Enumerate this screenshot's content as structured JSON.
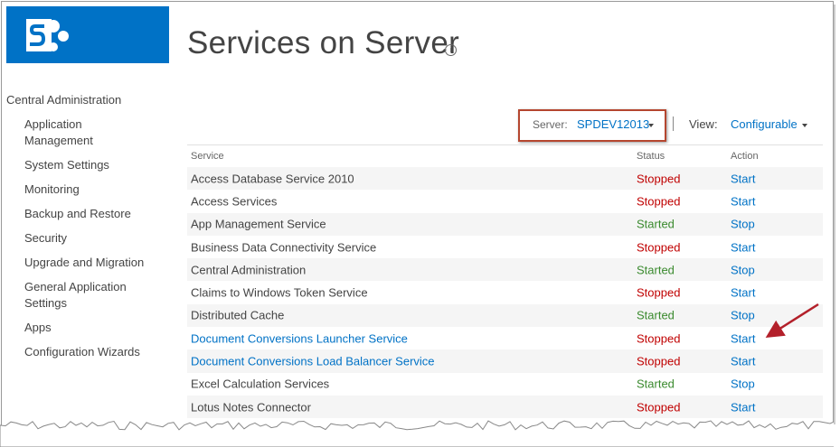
{
  "nav": {
    "heading": "Central Administration",
    "items": [
      "Application Management",
      "System Settings",
      "Monitoring",
      "Backup and Restore",
      "Security",
      "Upgrade and Migration",
      "General Application Settings",
      "Apps",
      "Configuration Wizards"
    ]
  },
  "header": {
    "title": "Services on Server"
  },
  "toolbar": {
    "server_label": "Server:",
    "server_value": "SPDEV12013",
    "view_label": "View:",
    "view_value": "Configurable"
  },
  "table": {
    "columns": [
      "Service",
      "Status",
      "Action"
    ],
    "rows": [
      {
        "service": "Access Database Service 2010",
        "status": "Stopped",
        "action": "Start",
        "status_color": "#c00000"
      },
      {
        "service": "Access Services",
        "status": "Stopped",
        "action": "Start",
        "status_color": "#c00000"
      },
      {
        "service": "App Management Service",
        "status": "Started",
        "action": "Stop",
        "status_color": "#3a8a2e"
      },
      {
        "service": "Business Data Connectivity Service",
        "status": "Stopped",
        "action": "Start",
        "status_color": "#c00000"
      },
      {
        "service": "Central Administration",
        "status": "Started",
        "action": "Stop",
        "status_color": "#3a8a2e"
      },
      {
        "service": "Claims to Windows Token Service",
        "status": "Stopped",
        "action": "Start",
        "status_color": "#c00000"
      },
      {
        "service": "Distributed Cache",
        "status": "Started",
        "action": "Stop",
        "status_color": "#3a8a2e"
      },
      {
        "service": "Document Conversions Launcher Service",
        "status": "Stopped",
        "action": "Start",
        "status_color": "#c00000",
        "service_color": "#0072c6"
      },
      {
        "service": "Document Conversions Load Balancer Service",
        "status": "Stopped",
        "action": "Start",
        "status_color": "#c00000",
        "service_color": "#0072c6"
      },
      {
        "service": "Excel Calculation Services",
        "status": "Started",
        "action": "Stop",
        "status_color": "#3a8a2e"
      },
      {
        "service": "Lotus Notes Connector",
        "status": "Stopped",
        "action": "Start",
        "status_color": "#c00000"
      }
    ]
  }
}
